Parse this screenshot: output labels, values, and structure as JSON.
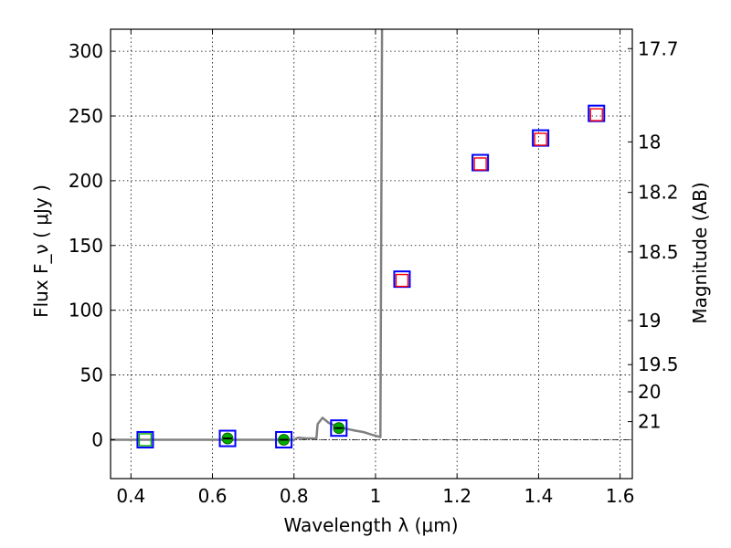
{
  "chart_data": {
    "type": "scatter",
    "xlabel": "Wavelength  λ (μm)",
    "ylabel": "Flux  F_ν  ( μJy )",
    "ylabel_right": "Magnitude (AB)",
    "xlim": [
      0.35,
      1.63
    ],
    "ylim": [
      -30,
      317
    ],
    "grid": true,
    "x_ticks": [
      "0.4",
      "0.6",
      "0.8",
      "1",
      "1.2",
      "1.4",
      "1.6"
    ],
    "y_ticks": [
      "0",
      "50",
      "100",
      "150",
      "200",
      "250",
      "300"
    ],
    "right_ticks": [
      {
        "label": "17.7",
        "flux": 302
      },
      {
        "label": "18",
        "flux": 230
      },
      {
        "label": "18.2",
        "flux": 191
      },
      {
        "label": "18.5",
        "flux": 145
      },
      {
        "label": "19",
        "flux": 92
      },
      {
        "label": "19.5",
        "flux": 58
      },
      {
        "label": "20",
        "flux": 37
      },
      {
        "label": "21",
        "flux": 14
      }
    ],
    "reference_line_y": 0,
    "series": [
      {
        "marker": "square",
        "color": "#0000ff",
        "points": [
          {
            "x": 0.435,
            "y": 0
          },
          {
            "x": 0.637,
            "y": 1
          },
          {
            "x": 0.775,
            "y": 0
          },
          {
            "x": 0.91,
            "y": 9
          },
          {
            "x": 1.065,
            "y": 124
          },
          {
            "x": 1.257,
            "y": 214
          },
          {
            "x": 1.405,
            "y": 233
          },
          {
            "x": 1.542,
            "y": 252
          }
        ]
      },
      {
        "marker": "square",
        "color": "#ff0000",
        "points": [
          {
            "x": 1.065,
            "y": 123
          },
          {
            "x": 1.257,
            "y": 213
          },
          {
            "x": 1.405,
            "y": 232
          },
          {
            "x": 1.542,
            "y": 251
          }
        ]
      },
      {
        "marker": "square",
        "color": "#00aa00",
        "points": [
          {
            "x": 0.435,
            "y": 0
          }
        ]
      },
      {
        "marker": "circle",
        "color": "#00aa00",
        "errorbar_color": "#000000",
        "points": [
          {
            "x": 0.637,
            "y": 1
          },
          {
            "x": 0.775,
            "y": 0
          },
          {
            "x": 0.91,
            "y": 9
          }
        ]
      },
      {
        "marker": "line",
        "color": "#808080",
        "points": [
          {
            "x": 0.35,
            "y": 0
          },
          {
            "x": 0.8,
            "y": 0
          },
          {
            "x": 0.81,
            "y": 1.5
          },
          {
            "x": 0.83,
            "y": 1
          },
          {
            "x": 0.855,
            "y": 1
          },
          {
            "x": 0.858,
            "y": 12
          },
          {
            "x": 0.87,
            "y": 17
          },
          {
            "x": 0.885,
            "y": 13
          },
          {
            "x": 0.9,
            "y": 11
          },
          {
            "x": 0.92,
            "y": 9
          },
          {
            "x": 0.95,
            "y": 7
          },
          {
            "x": 0.97,
            "y": 6
          },
          {
            "x": 0.99,
            "y": 4
          },
          {
            "x": 1.012,
            "y": 2
          },
          {
            "x": 1.016,
            "y": 317
          }
        ]
      }
    ]
  }
}
